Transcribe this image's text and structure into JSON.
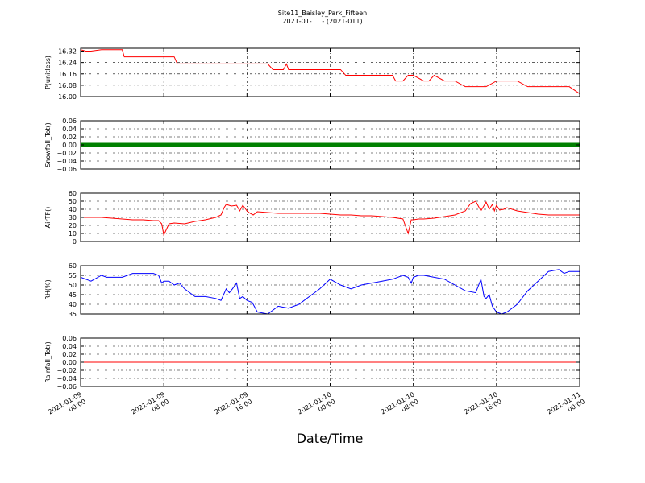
{
  "title_line1": "Site11_Baisley_Park_Fifteen",
  "title_line2": "2021-01-11 - (2021-011)",
  "x_axis": {
    "label": "Date/Time",
    "ticks": [
      {
        "hours": 0,
        "line1": "2021-01-09",
        "line2": "00:00"
      },
      {
        "hours": 8,
        "line1": "2021-01-09",
        "line2": "08:00"
      },
      {
        "hours": 16,
        "line1": "2021-01-09",
        "line2": "16:00"
      },
      {
        "hours": 24,
        "line1": "2021-01-10",
        "line2": "00:00"
      },
      {
        "hours": 32,
        "line1": "2021-01-10",
        "line2": "08:00"
      },
      {
        "hours": 40,
        "line1": "2021-01-10",
        "line2": "16:00"
      },
      {
        "hours": 48,
        "line1": "2021-01-11",
        "line2": "00:00"
      }
    ],
    "range_hours": [
      0,
      48
    ]
  },
  "chart_data": [
    {
      "type": "line",
      "ylabel": "P(unitless)",
      "ylim": [
        16.0,
        16.34
      ],
      "yticks": [
        "16.00",
        "16.08",
        "16.16",
        "16.24",
        "16.32"
      ],
      "ytick_values": [
        16.0,
        16.08,
        16.16,
        16.24,
        16.32
      ],
      "color": "#ff0000",
      "series_style": "line",
      "x": [
        0,
        0.5,
        1,
        2,
        3,
        4,
        4.2,
        5,
        6,
        7,
        8,
        9,
        9.3,
        10,
        11,
        12,
        13,
        14,
        15,
        16,
        17,
        18,
        18.5,
        19,
        19.5,
        19.8,
        20,
        21,
        22,
        23,
        24,
        25,
        25.5,
        26,
        27,
        28,
        29,
        30,
        30.3,
        31,
        31.5,
        32,
        33,
        33.5,
        34,
        35,
        36,
        37,
        38,
        39,
        40,
        41,
        41.5,
        42,
        43,
        44,
        45,
        46,
        46.5,
        47,
        48
      ],
      "y": [
        16.33,
        16.32,
        16.32,
        16.33,
        16.33,
        16.33,
        16.28,
        16.28,
        16.28,
        16.28,
        16.28,
        16.28,
        16.23,
        16.23,
        16.23,
        16.23,
        16.23,
        16.23,
        16.23,
        16.23,
        16.23,
        16.23,
        16.19,
        16.19,
        16.19,
        16.23,
        16.19,
        16.19,
        16.19,
        16.19,
        16.19,
        16.19,
        16.15,
        16.15,
        16.15,
        16.15,
        16.15,
        16.15,
        16.11,
        16.11,
        16.15,
        16.15,
        16.11,
        16.11,
        16.15,
        16.11,
        16.11,
        16.07,
        16.07,
        16.07,
        16.11,
        16.11,
        16.11,
        16.11,
        16.07,
        16.07,
        16.07,
        16.07,
        16.07,
        16.07,
        16.02
      ]
    },
    {
      "type": "scatter",
      "ylabel": "Snowfall_Tot()",
      "ylim": [
        -0.06,
        0.06
      ],
      "yticks": [
        "−0.06",
        "−0.04",
        "−0.02",
        "0.00",
        "0.02",
        "0.04",
        "0.06"
      ],
      "ytick_values": [
        -0.06,
        -0.04,
        -0.02,
        0.0,
        0.02,
        0.04,
        0.06
      ],
      "color": "#008000",
      "series_style": "dense-markers",
      "x": [
        0,
        48
      ],
      "y": [
        0.0,
        0.0
      ]
    },
    {
      "type": "line",
      "ylabel": "AirTF()",
      "ylim": [
        0,
        60
      ],
      "yticks": [
        "0",
        "10",
        "20",
        "30",
        "40",
        "50",
        "60"
      ],
      "ytick_values": [
        0,
        10,
        20,
        30,
        40,
        50,
        60
      ],
      "color": "#ff0000",
      "series_style": "line",
      "x": [
        0,
        1,
        2,
        3,
        4,
        5,
        6,
        7,
        7.5,
        7.8,
        8,
        8.5,
        9,
        10,
        11,
        12,
        13,
        13.5,
        13.8,
        14,
        14.5,
        15,
        15.3,
        15.6,
        16,
        16.3,
        16.6,
        17,
        18,
        19,
        20,
        21,
        22,
        23,
        24,
        25,
        26,
        27,
        28,
        29,
        30,
        31,
        31.5,
        31.8,
        32,
        32.5,
        33,
        34,
        35,
        36,
        37,
        37.5,
        38,
        38.5,
        39,
        39.3,
        39.6,
        39.8,
        40,
        40.3,
        40.7,
        41,
        42,
        43,
        44,
        45,
        46,
        47,
        48
      ],
      "y": [
        30,
        30,
        30,
        29,
        28,
        27,
        27,
        26,
        26,
        22,
        8,
        22,
        23,
        22,
        25,
        27,
        30,
        33,
        42,
        46,
        44,
        45,
        38,
        45,
        38,
        35,
        33,
        37,
        36,
        35,
        35,
        35,
        35,
        35,
        34,
        33,
        33,
        32,
        32,
        31,
        30,
        28,
        10,
        27,
        27,
        28,
        28,
        29,
        31,
        33,
        38,
        47,
        50,
        38,
        49,
        40,
        46,
        38,
        45,
        39,
        40,
        42,
        38,
        36,
        34,
        33,
        33,
        33,
        33
      ]
    },
    {
      "type": "line",
      "ylabel": "RH(%)",
      "ylim": [
        35,
        60
      ],
      "yticks": [
        "35",
        "40",
        "45",
        "50",
        "55",
        "60"
      ],
      "ytick_values": [
        35,
        40,
        45,
        50,
        55,
        60
      ],
      "color": "#0000ff",
      "series_style": "line",
      "x": [
        0,
        0.5,
        1,
        2,
        2.5,
        3,
        4,
        5,
        6,
        7,
        7.5,
        7.8,
        8,
        8.5,
        9,
        9.5,
        10,
        10.5,
        11,
        12,
        13,
        13.5,
        14,
        14.3,
        14.6,
        15,
        15.3,
        15.6,
        16,
        16.5,
        17,
        18,
        19,
        20,
        21,
        22,
        23,
        24,
        25,
        26,
        27,
        28,
        29,
        30,
        31,
        31.5,
        31.8,
        32,
        32.5,
        33,
        34,
        35,
        36,
        37,
        38,
        38.5,
        38.8,
        39,
        39.3,
        39.6,
        40,
        40.5,
        41,
        42,
        43,
        44,
        45,
        46,
        46.5,
        47,
        48
      ],
      "y": [
        54,
        53,
        52,
        55,
        54,
        54,
        54,
        56,
        56,
        56,
        55,
        51,
        52,
        52,
        50,
        51,
        48,
        46,
        44,
        44,
        43,
        42,
        48,
        46,
        48,
        51,
        43,
        44,
        42,
        41,
        36,
        35,
        39,
        38,
        40,
        44,
        48,
        53,
        50,
        48,
        50,
        51,
        52,
        53,
        55,
        54,
        51,
        54,
        55,
        55,
        54,
        53,
        50,
        47,
        46,
        53,
        44,
        43,
        45,
        39,
        36,
        35,
        36,
        40,
        47,
        52,
        57,
        58,
        56,
        57,
        57
      ]
    },
    {
      "type": "line",
      "ylabel": "Rainfall_Tot()",
      "ylim": [
        -0.06,
        0.06
      ],
      "yticks": [
        "−0.06",
        "−0.04",
        "−0.02",
        "0.00",
        "0.02",
        "0.04",
        "0.06"
      ],
      "ytick_values": [
        -0.06,
        -0.04,
        -0.02,
        0.0,
        0.02,
        0.04,
        0.06
      ],
      "color": "#ff0000",
      "series_style": "line",
      "x": [
        0,
        48
      ],
      "y": [
        0.0,
        0.0
      ]
    }
  ]
}
